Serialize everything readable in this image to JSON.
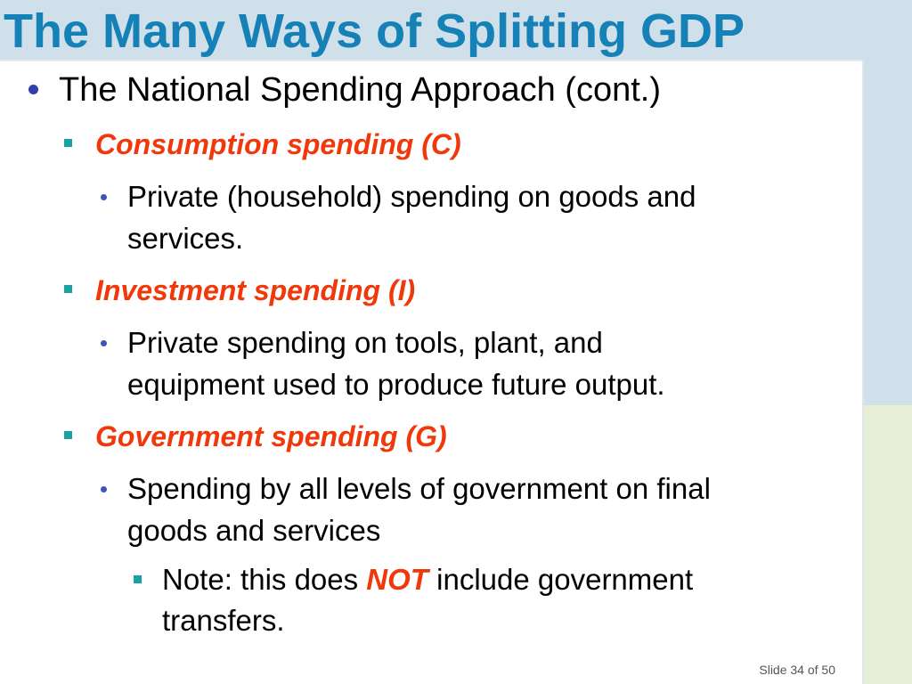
{
  "slide": {
    "title": "The Many Ways of Splitting GDP",
    "heading": "The National Spending Approach (cont.)",
    "items": [
      {
        "label": "Consumption spending (C)",
        "text_lines": [
          "Private (household) spending on goods and",
          "services."
        ]
      },
      {
        "label": "Investment spending (I)",
        "text_lines": [
          "Private spending on tools, plant, and",
          "equipment used to produce future output."
        ]
      },
      {
        "label": "Government spending (G)",
        "text_lines": [
          "Spending by all levels of government on final",
          "goods and services"
        ]
      }
    ],
    "note": {
      "prefix": "Note: this does ",
      "emphasis": "NOT",
      "suffix": " include government",
      "line2": "transfers."
    },
    "footer": "Slide 34 of 50"
  },
  "colors": {
    "title": "#1581b6",
    "label_red": "#f0380b",
    "square_bullet": "#19a1a6",
    "round_bullet": "#3040a8",
    "bg_blue": "#cfe0ea",
    "bg_green": "#e6efd6"
  }
}
